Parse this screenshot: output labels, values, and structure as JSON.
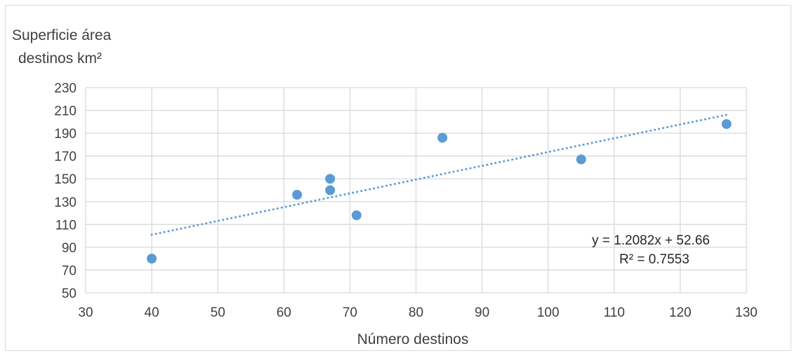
{
  "chart_data": {
    "type": "scatter",
    "ylabel_line1": "Superficie área",
    "ylabel_line2": "destinos km²",
    "xlabel": "Número destinos",
    "xlim": [
      30,
      130
    ],
    "ylim": [
      50,
      230
    ],
    "xticks": [
      30,
      40,
      50,
      60,
      70,
      80,
      90,
      100,
      110,
      120,
      130
    ],
    "yticks": [
      50,
      70,
      90,
      110,
      130,
      150,
      170,
      190,
      210,
      230
    ],
    "grid": true,
    "points": [
      {
        "x": 40,
        "y": 80
      },
      {
        "x": 62,
        "y": 136
      },
      {
        "x": 67,
        "y": 150
      },
      {
        "x": 67,
        "y": 140
      },
      {
        "x": 71,
        "y": 118
      },
      {
        "x": 84,
        "y": 186
      },
      {
        "x": 105,
        "y": 167
      },
      {
        "x": 127,
        "y": 198
      }
    ],
    "trendline": {
      "type": "linear",
      "slope": 1.2082,
      "intercept": 52.66,
      "x_range": [
        40,
        127
      ],
      "equation_label": "y = 1.2082x + 52.66",
      "r2_label": "R² = 0.7553"
    },
    "colors": {
      "marker": "#5b9bd5",
      "trendline": "#5b9bd5",
      "grid": "#d9d9d9",
      "text": "#404040"
    }
  }
}
